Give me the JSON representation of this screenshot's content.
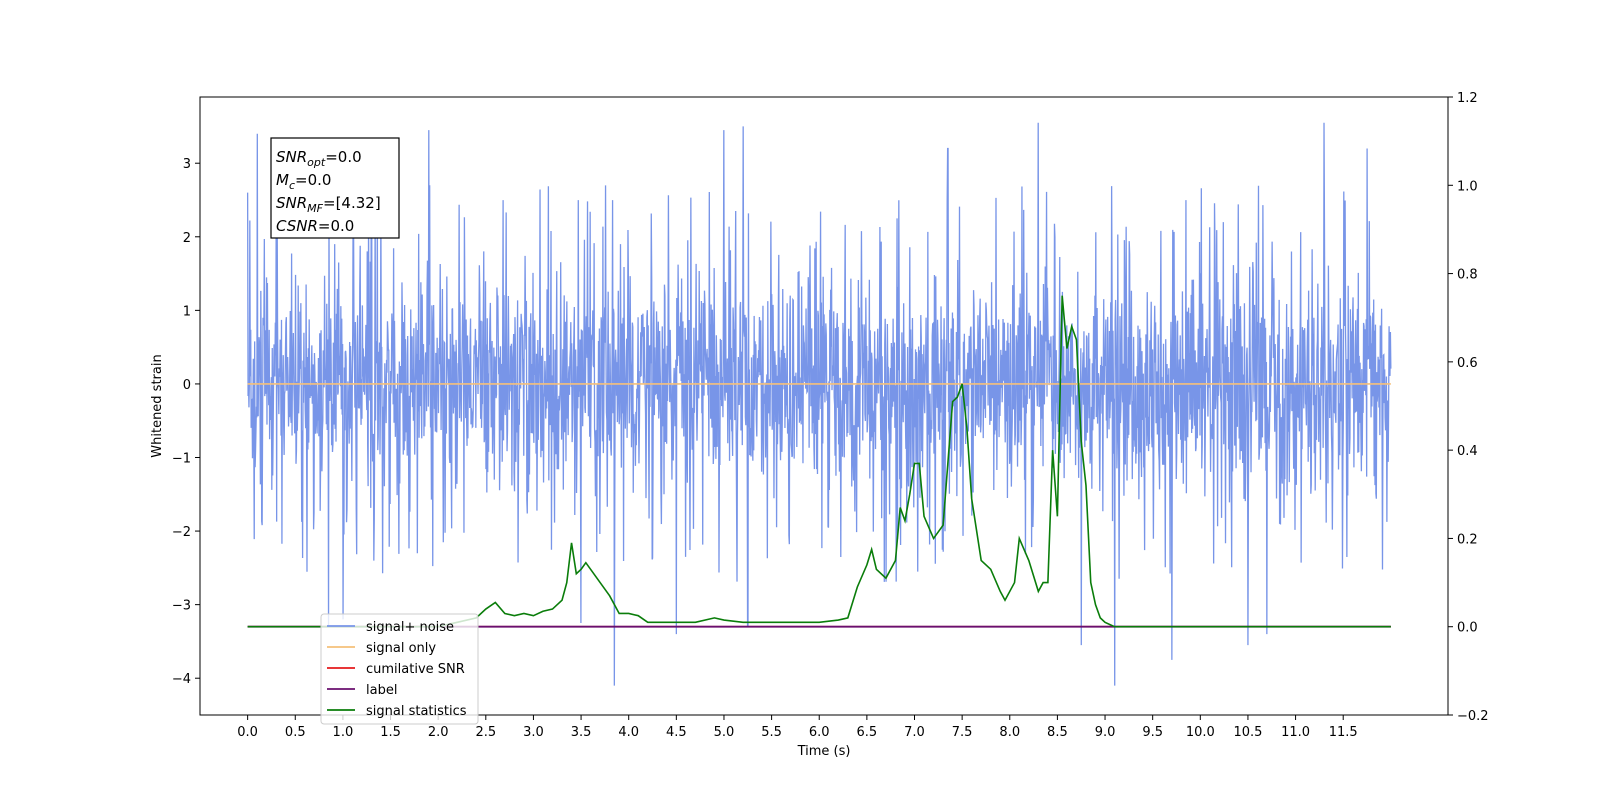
{
  "chart_data": {
    "type": "line",
    "xlabel": "Time (s)",
    "ylabel": "Whitened strain",
    "xlim": [
      -0.5,
      12.6
    ],
    "ylim": [
      -4.5,
      3.9
    ],
    "y2lim": [
      -0.2,
      1.2
    ],
    "x_ticks": [
      0.0,
      0.5,
      1.0,
      1.5,
      2.0,
      2.5,
      3.0,
      3.5,
      4.0,
      4.5,
      5.0,
      5.5,
      6.0,
      6.5,
      7.0,
      7.5,
      8.0,
      8.5,
      9.0,
      9.5,
      10.0,
      10.5,
      11.0,
      11.5
    ],
    "x_tick_labels": [
      "0.0",
      "0.5",
      "1.0",
      "1.5",
      "2.0",
      "2.5",
      "3.0",
      "3.5",
      "4.0",
      "4.5",
      "5.0",
      "5.5",
      "6.0",
      "6.5",
      "7.0",
      "7.5",
      "8.0",
      "8.5",
      "9.0",
      "9.5",
      "10.0",
      "10.5",
      "11.0",
      "11.5"
    ],
    "y_ticks": [
      -4,
      -3,
      -2,
      -1,
      0,
      1,
      2,
      3
    ],
    "y_tick_labels": [
      "−4",
      "−3",
      "−2",
      "−1",
      "0",
      "1",
      "2",
      "3"
    ],
    "y2_ticks": [
      -0.2,
      0.0,
      0.2,
      0.4,
      0.6,
      0.8,
      1.0,
      1.2
    ],
    "y2_tick_labels": [
      "−0.2",
      "0.0",
      "0.2",
      "0.4",
      "0.6",
      "0.8",
      "1.0",
      "1.2"
    ],
    "grid": false,
    "legend_placement": "lower-left",
    "annotation": {
      "lines": [
        {
          "main": "SNR",
          "sub": "opt",
          "rest": "=0.0"
        },
        {
          "main": "M",
          "sub": "c",
          "rest": "=0.0"
        },
        {
          "main": "SNR",
          "sub": "MF",
          "rest": "=[4.32]"
        },
        {
          "main": "CSNR",
          "sub": "",
          "rest": "=0.0"
        }
      ]
    },
    "series": [
      {
        "name": "signal+ noise",
        "color": "#7895e8",
        "axis": "left",
        "kind": "noise",
        "x_range": [
          0.0,
          12.0
        ],
        "envelope": [
          -1.7,
          1.8
        ],
        "extremes": [
          {
            "x": 0.85,
            "y": -3.3
          },
          {
            "x": 1.0,
            "y": -3.2
          },
          {
            "x": 1.3,
            "y": 3.2
          },
          {
            "x": 1.9,
            "y": 3.45
          },
          {
            "x": 3.5,
            "y": -3.25
          },
          {
            "x": 3.85,
            "y": -4.1
          },
          {
            "x": 4.5,
            "y": -3.4
          },
          {
            "x": 5.0,
            "y": 3.45
          },
          {
            "x": 5.2,
            "y": 3.5
          },
          {
            "x": 5.25,
            "y": -3.3
          },
          {
            "x": 7.35,
            "y": 3.2
          },
          {
            "x": 8.3,
            "y": 3.55
          },
          {
            "x": 8.75,
            "y": -3.55
          },
          {
            "x": 9.1,
            "y": -4.1
          },
          {
            "x": 9.7,
            "y": -3.75
          },
          {
            "x": 10.5,
            "y": -3.55
          },
          {
            "x": 10.7,
            "y": -3.4
          },
          {
            "x": 11.3,
            "y": 3.55
          },
          {
            "x": 11.75,
            "y": 3.2
          },
          {
            "x": 0.1,
            "y": 3.4
          }
        ]
      },
      {
        "name": "signal only",
        "color": "#f5c07a",
        "axis": "left",
        "x": [
          0.0,
          12.0
        ],
        "y": [
          0.0,
          0.0
        ]
      },
      {
        "name": "cumilative SNR",
        "color": "#e41a1c",
        "axis": "right",
        "x": [
          0.0,
          12.0
        ],
        "y": [
          0.0,
          0.0
        ]
      },
      {
        "name": "label",
        "color": "#6a0f6e",
        "axis": "right",
        "x": [
          0.0,
          12.0
        ],
        "y": [
          0.0,
          0.0
        ]
      },
      {
        "name": "signal statistics",
        "color": "#0a7d0a",
        "axis": "right",
        "x": [
          0.0,
          2.0,
          2.2,
          2.4,
          2.5,
          2.6,
          2.7,
          2.8,
          2.9,
          3.0,
          3.1,
          3.2,
          3.3,
          3.35,
          3.4,
          3.45,
          3.5,
          3.55,
          3.6,
          3.7,
          3.8,
          3.9,
          4.0,
          4.1,
          4.2,
          4.3,
          4.5,
          4.7,
          4.9,
          5.0,
          5.2,
          5.4,
          5.6,
          5.8,
          6.0,
          6.2,
          6.3,
          6.4,
          6.5,
          6.55,
          6.6,
          6.7,
          6.8,
          6.85,
          6.9,
          6.95,
          7.0,
          7.05,
          7.1,
          7.2,
          7.3,
          7.4,
          7.45,
          7.5,
          7.55,
          7.6,
          7.7,
          7.8,
          7.9,
          7.95,
          8.05,
          8.1,
          8.2,
          8.3,
          8.35,
          8.4,
          8.45,
          8.5,
          8.55,
          8.6,
          8.65,
          8.7,
          8.75,
          8.8,
          8.85,
          8.9,
          8.95,
          9.0,
          9.1,
          9.3,
          9.5,
          9.7,
          10.0,
          10.5,
          11.0,
          11.5,
          12.0
        ],
        "y": [
          0.0,
          0.0,
          0.01,
          0.02,
          0.04,
          0.055,
          0.03,
          0.025,
          0.03,
          0.025,
          0.035,
          0.04,
          0.06,
          0.1,
          0.19,
          0.12,
          0.13,
          0.145,
          0.13,
          0.1,
          0.07,
          0.03,
          0.03,
          0.025,
          0.01,
          0.01,
          0.01,
          0.01,
          0.02,
          0.015,
          0.01,
          0.01,
          0.01,
          0.01,
          0.01,
          0.015,
          0.02,
          0.09,
          0.14,
          0.175,
          0.13,
          0.11,
          0.15,
          0.27,
          0.24,
          0.3,
          0.37,
          0.37,
          0.25,
          0.2,
          0.23,
          0.51,
          0.52,
          0.55,
          0.45,
          0.29,
          0.15,
          0.13,
          0.08,
          0.06,
          0.1,
          0.2,
          0.15,
          0.08,
          0.1,
          0.1,
          0.4,
          0.25,
          0.75,
          0.63,
          0.68,
          0.65,
          0.42,
          0.32,
          0.1,
          0.05,
          0.02,
          0.01,
          0.0,
          0.0,
          0.0,
          0.0,
          0.0,
          0.0,
          0.0,
          0.0,
          0.0
        ]
      }
    ]
  }
}
